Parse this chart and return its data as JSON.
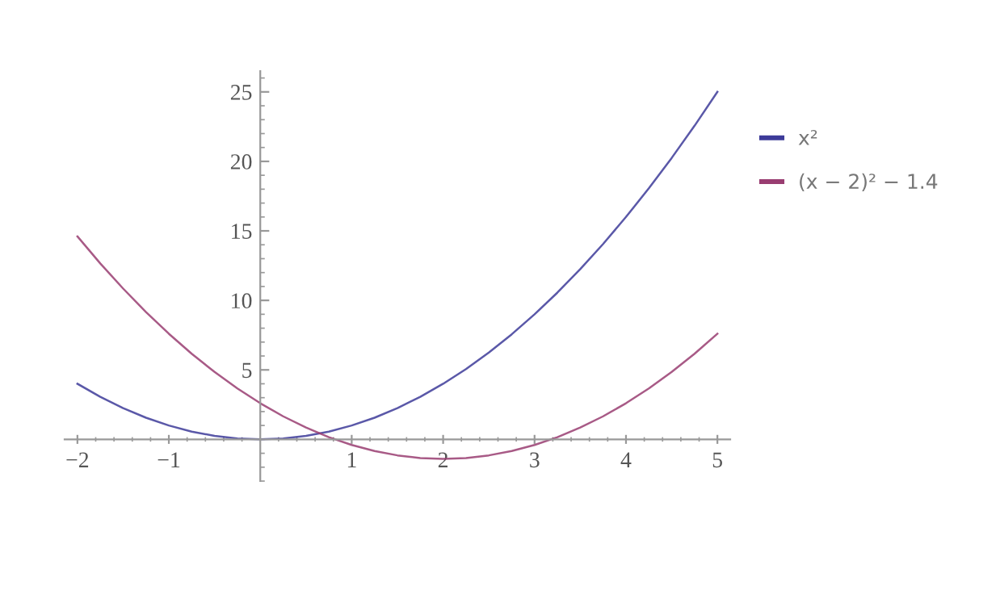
{
  "chart_data": {
    "type": "line",
    "x": [
      -2,
      -1.75,
      -1.5,
      -1.25,
      -1,
      -0.75,
      -0.5,
      -0.25,
      0,
      0.25,
      0.5,
      0.75,
      1,
      1.25,
      1.5,
      1.75,
      2,
      2.25,
      2.5,
      2.75,
      3,
      3.25,
      3.5,
      3.75,
      4,
      4.25,
      4.5,
      4.75,
      5
    ],
    "series": [
      {
        "name": "x²",
        "color": "#3d3b99",
        "values": [
          4,
          3.06,
          2.25,
          1.56,
          1,
          0.56,
          0.25,
          0.06,
          0,
          0.06,
          0.25,
          0.56,
          1,
          1.56,
          2.25,
          3.06,
          4,
          5.06,
          6.25,
          7.56,
          9,
          10.56,
          12.25,
          14.06,
          16,
          18.06,
          20.25,
          22.56,
          25
        ]
      },
      {
        "name": "(x − 2)² − 1.4",
        "color": "#993d71",
        "values": [
          14.6,
          12.66,
          10.85,
          9.16,
          7.6,
          6.16,
          4.85,
          3.66,
          2.6,
          1.66,
          0.85,
          0.16,
          -0.4,
          -0.84,
          -1.15,
          -1.34,
          -1.4,
          -1.34,
          -1.15,
          -0.84,
          -0.4,
          0.16,
          0.85,
          1.66,
          2.6,
          3.66,
          4.85,
          6.16,
          7.6
        ]
      }
    ],
    "xlim": [
      -2.14,
      5.14
    ],
    "ylim": [
      -3,
      26.5
    ],
    "xticks": [
      -2,
      -1,
      1,
      2,
      3,
      4,
      5
    ],
    "yticks": [
      5,
      10,
      15,
      20,
      25
    ],
    "grid": false,
    "legend": "right",
    "marker": "none",
    "line_style": "solid"
  }
}
